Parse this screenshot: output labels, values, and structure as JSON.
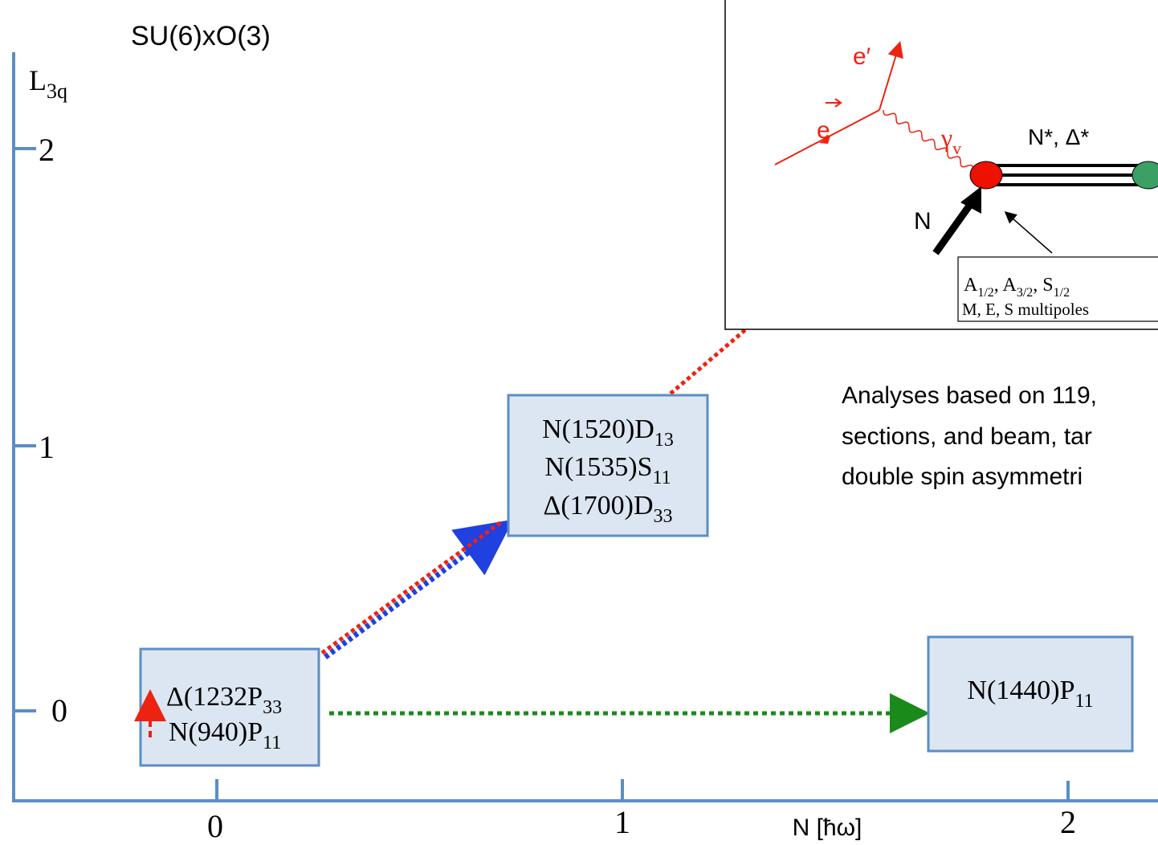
{
  "title": "SU(6)xO(3)",
  "y_axis": {
    "label": "L",
    "label_sub": "3q",
    "ticks": [
      "2",
      "1",
      "0"
    ]
  },
  "x_axis": {
    "label": "N [ħω]",
    "ticks": [
      "0",
      "1",
      "2"
    ]
  },
  "states": [
    {
      "lines": [
        {
          "text": "Δ(1232P",
          "sub": "33"
        },
        {
          "text": "N(940)P",
          "sub": "11"
        }
      ]
    },
    {
      "lines": [
        {
          "text": "N(1520)D",
          "sub": "13"
        },
        {
          "text": "N(1535)S",
          "sub": "11"
        },
        {
          "text": "Δ(1700)D",
          "sub": "33"
        }
      ]
    },
    {
      "lines": [
        {
          "text": "N(1440)P",
          "sub": "11"
        }
      ]
    }
  ],
  "inset": {
    "electron_in": "e",
    "electron_out": "e′",
    "photon": "γ",
    "photon_sub": "v",
    "resonance": "N*, Δ*",
    "nucleon": "N",
    "amplitudes": [
      {
        "text": "A",
        "sub": "1/2"
      },
      {
        "text": ", A",
        "sub": "3/2"
      },
      {
        "text": ", S",
        "sub": "1/2"
      }
    ],
    "multipoles": "M, E, S multipoles"
  },
  "note": [
    "Analyses based on 119,",
    "sections, and beam, tar",
    "double spin asymmetri"
  ]
}
